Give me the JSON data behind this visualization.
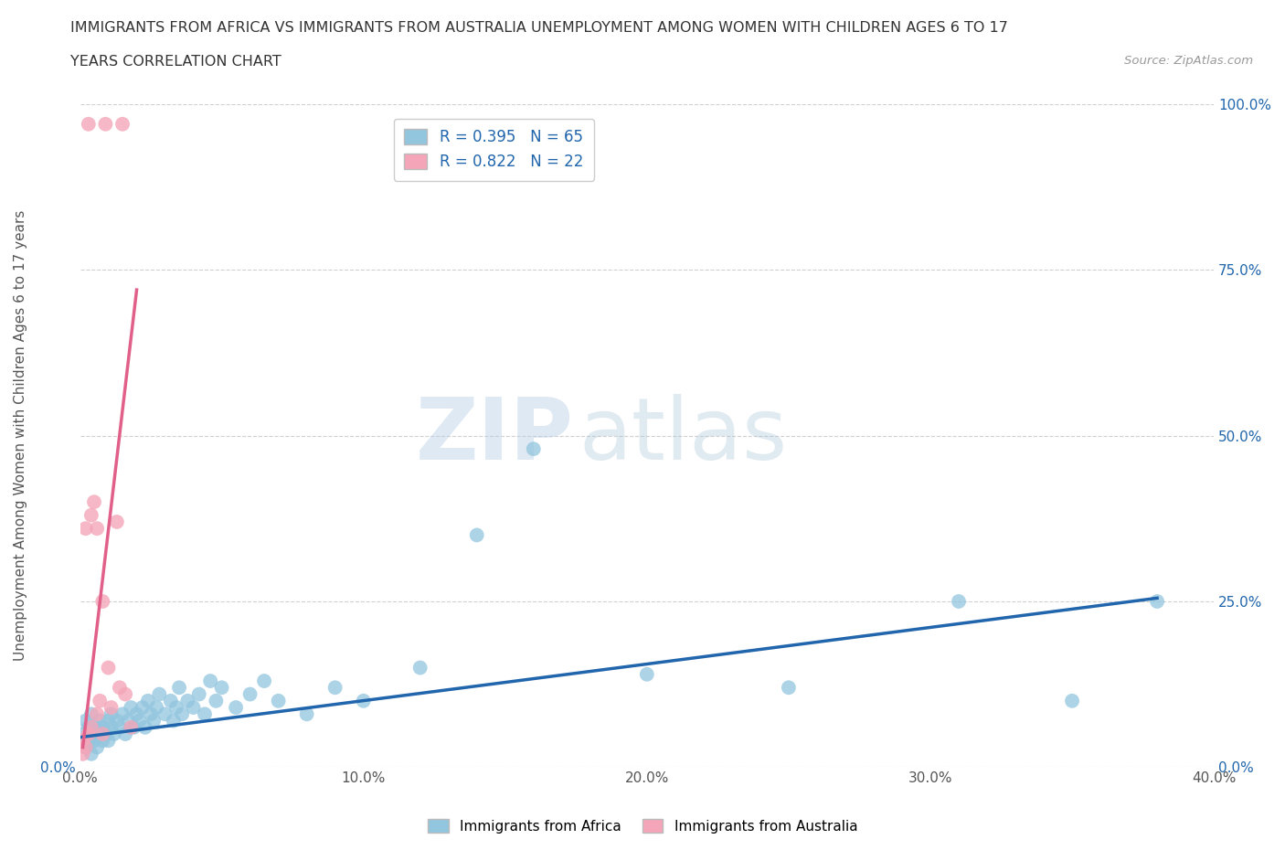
{
  "title_line1": "IMMIGRANTS FROM AFRICA VS IMMIGRANTS FROM AUSTRALIA UNEMPLOYMENT AMONG WOMEN WITH CHILDREN AGES 6 TO 17",
  "title_line2": "YEARS CORRELATION CHART",
  "source": "Source: ZipAtlas.com",
  "ylabel": "Unemployment Among Women with Children Ages 6 to 17 years",
  "xlim": [
    0.0,
    0.4
  ],
  "ylim": [
    0.0,
    1.0
  ],
  "xticks": [
    0.0,
    0.1,
    0.2,
    0.3,
    0.4
  ],
  "yticks": [
    0.0,
    0.25,
    0.5,
    0.75,
    1.0
  ],
  "xtick_labels": [
    "0.0%",
    "10.0%",
    "20.0%",
    "30.0%",
    "40.0%"
  ],
  "ytick_labels": [
    "0.0%",
    "25.0%",
    "50.0%",
    "75.0%",
    "100.0%"
  ],
  "blue_color": "#92c5de",
  "pink_color": "#f4a6b8",
  "blue_line_color": "#2166ac",
  "pink_line_color": "#e0608a",
  "R_blue": 0.395,
  "N_blue": 65,
  "R_pink": 0.822,
  "N_pink": 22,
  "legend_label_blue": "Immigrants from Africa",
  "legend_label_pink": "Immigrants from Australia",
  "watermark_zip": "ZIP",
  "watermark_atlas": "atlas",
  "background_color": "#ffffff",
  "grid_color": "#d0d0d0",
  "blue_x": [
    0.001,
    0.002,
    0.002,
    0.003,
    0.003,
    0.004,
    0.004,
    0.005,
    0.005,
    0.006,
    0.006,
    0.007,
    0.007,
    0.008,
    0.008,
    0.009,
    0.01,
    0.01,
    0.011,
    0.011,
    0.012,
    0.013,
    0.014,
    0.015,
    0.016,
    0.017,
    0.018,
    0.019,
    0.02,
    0.021,
    0.022,
    0.023,
    0.024,
    0.025,
    0.026,
    0.027,
    0.028,
    0.03,
    0.032,
    0.033,
    0.034,
    0.035,
    0.036,
    0.038,
    0.04,
    0.042,
    0.044,
    0.046,
    0.048,
    0.05,
    0.055,
    0.06,
    0.065,
    0.07,
    0.08,
    0.09,
    0.1,
    0.12,
    0.14,
    0.16,
    0.2,
    0.25,
    0.31,
    0.35,
    0.38
  ],
  "blue_y": [
    0.05,
    0.03,
    0.07,
    0.04,
    0.06,
    0.02,
    0.08,
    0.05,
    0.04,
    0.06,
    0.03,
    0.07,
    0.05,
    0.04,
    0.06,
    0.05,
    0.07,
    0.04,
    0.06,
    0.08,
    0.05,
    0.07,
    0.06,
    0.08,
    0.05,
    0.07,
    0.09,
    0.06,
    0.08,
    0.07,
    0.09,
    0.06,
    0.1,
    0.08,
    0.07,
    0.09,
    0.11,
    0.08,
    0.1,
    0.07,
    0.09,
    0.12,
    0.08,
    0.1,
    0.09,
    0.11,
    0.08,
    0.13,
    0.1,
    0.12,
    0.09,
    0.11,
    0.13,
    0.1,
    0.08,
    0.12,
    0.1,
    0.15,
    0.35,
    0.48,
    0.14,
    0.12,
    0.25,
    0.1,
    0.25
  ],
  "pink_x": [
    0.001,
    0.001,
    0.002,
    0.002,
    0.003,
    0.003,
    0.004,
    0.004,
    0.005,
    0.006,
    0.006,
    0.007,
    0.008,
    0.008,
    0.009,
    0.01,
    0.011,
    0.013,
    0.014,
    0.015,
    0.016,
    0.018
  ],
  "pink_y": [
    0.02,
    0.04,
    0.03,
    0.36,
    0.05,
    0.97,
    0.06,
    0.38,
    0.4,
    0.08,
    0.36,
    0.1,
    0.25,
    0.05,
    0.97,
    0.15,
    0.09,
    0.37,
    0.12,
    0.97,
    0.11,
    0.06
  ],
  "blue_line_x": [
    0.0,
    0.38
  ],
  "blue_line_y": [
    0.045,
    0.255
  ],
  "pink_line_x": [
    0.001,
    0.02
  ],
  "pink_line_y": [
    0.03,
    0.72
  ]
}
